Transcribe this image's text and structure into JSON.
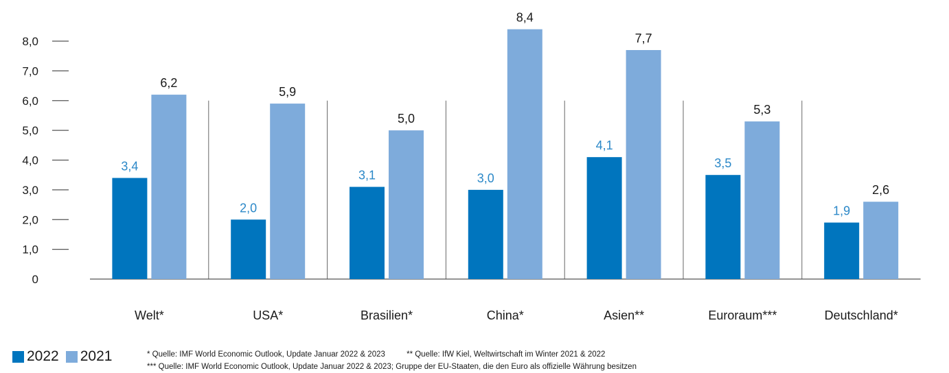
{
  "chart_data": {
    "type": "bar",
    "categories": [
      "Welt*",
      "USA*",
      "Brasilien*",
      "China*",
      "Asien**",
      "Euroraum***",
      "Deutschland*"
    ],
    "series": [
      {
        "name": "2022",
        "values": [
          3.4,
          2.0,
          3.1,
          3.0,
          4.1,
          3.5,
          1.9
        ],
        "labels": [
          "3,4",
          "2,0",
          "3,1",
          "3,0",
          "4,1",
          "3,5",
          "1,9"
        ]
      },
      {
        "name": "2021",
        "values": [
          6.2,
          5.9,
          5.0,
          8.4,
          7.7,
          5.3,
          2.6
        ],
        "labels": [
          "6,2",
          "5,9",
          "5,0",
          "8,4",
          "7,7",
          "5,3",
          "2,6"
        ]
      }
    ],
    "ylim": [
      0,
      8.0
    ],
    "yticks": [
      0,
      1,
      2,
      3,
      4,
      5,
      6,
      7,
      8
    ],
    "ytick_labels": [
      "0",
      "1,0",
      "2,0",
      "3,0",
      "4,0",
      "5,0",
      "6,0",
      "7,0",
      "8,0"
    ],
    "title": "",
    "xlabel": "",
    "ylabel": "",
    "legend_position": "bottom-left",
    "grid": false
  },
  "colors": {
    "series_2022": "#0075be",
    "series_2021": "#7eabdb",
    "label_2022": "#2b88c8",
    "label_2021": "#1a1a1a",
    "axis": "#555555"
  },
  "legend": [
    {
      "label": "2022"
    },
    {
      "label": "2021"
    }
  ],
  "footnotes": {
    "note1": "* Quelle: IMF World Economic Outlook, Update Januar 2022 & 2023",
    "note2": "** Quelle: IfW Kiel, Weltwirtschaft im Winter 2021 & 2022",
    "note3": "*** Quelle: IMF World Economic Outlook, Update Januar 2022 & 2023; Gruppe der EU-Staaten, die den Euro als offizielle Währung besitzen"
  }
}
